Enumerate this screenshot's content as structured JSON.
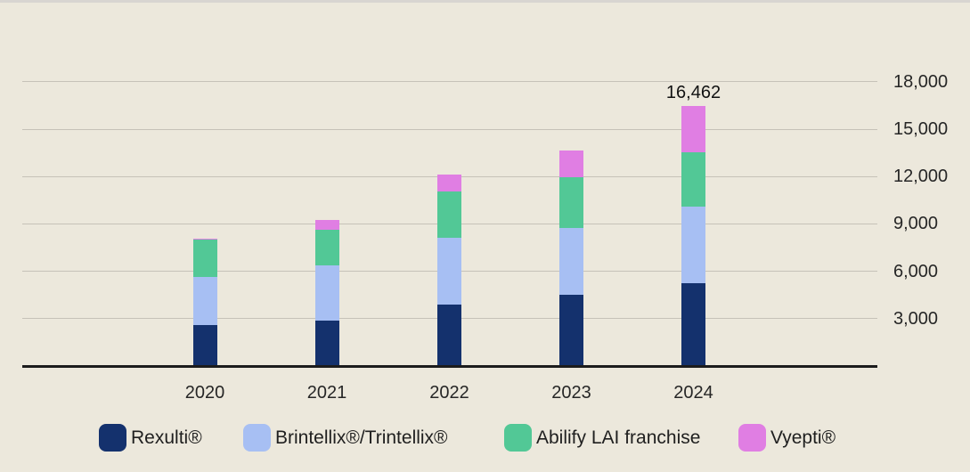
{
  "chart_data": {
    "type": "bar",
    "stacked": true,
    "title": "",
    "xlabel": "",
    "ylabel": "",
    "categories": [
      "2020",
      "2021",
      "2022",
      "2023",
      "2024"
    ],
    "series": [
      {
        "name": "Rexulti®",
        "color": "#14316D",
        "values": [
          2600,
          2850,
          3880,
          4500,
          5228
        ]
      },
      {
        "name": "Brintellix®/Trintellix®",
        "color": "#A7BFF3",
        "values": [
          3050,
          3530,
          4250,
          4260,
          4842
        ]
      },
      {
        "name": "Abilify LAI franchise",
        "color": "#52C896",
        "values": [
          2330,
          2250,
          2940,
          3190,
          3467
        ]
      },
      {
        "name": "Vyepti®",
        "color": "#E07EE3",
        "values": [
          110,
          620,
          1070,
          1710,
          2925
        ]
      }
    ],
    "totals": [
      8090,
      9250,
      12140,
      13660,
      16462
    ],
    "data_labels": {
      "2024": "16,462"
    },
    "y_ticks": [
      {
        "value": 18000,
        "label": "18,000"
      },
      {
        "value": 15000,
        "label": "15,000"
      },
      {
        "value": 12000,
        "label": "12,000"
      },
      {
        "value": 9000,
        "label": "9,000"
      },
      {
        "value": 6000,
        "label": "6,000"
      },
      {
        "value": 3000,
        "label": "3,000"
      }
    ],
    "ylim": [
      0,
      19500
    ],
    "grid": true,
    "legend_position": "bottom",
    "y_axis_side": "right"
  },
  "colors": {
    "background": "#ECE8DC",
    "gridline": "#C6C2B8",
    "axis": "#1C1C1C",
    "text": "#262626",
    "data_label_text": "#111111"
  }
}
